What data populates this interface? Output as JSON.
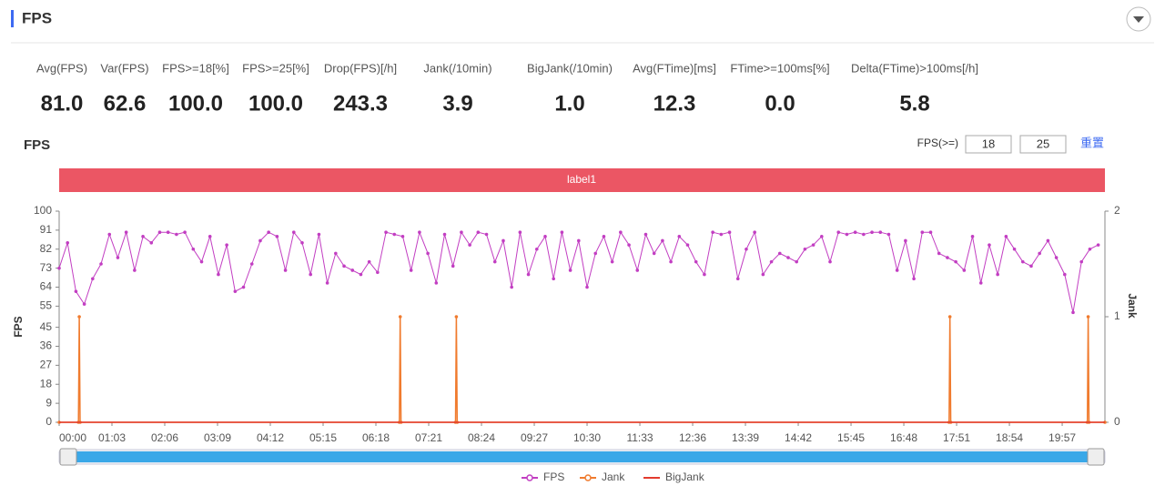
{
  "header": {
    "title": "FPS"
  },
  "stats": [
    {
      "label": "Avg(FPS)",
      "value": "81.0"
    },
    {
      "label": "Var(FPS)",
      "value": "62.6"
    },
    {
      "label": "FPS>=18[%]",
      "value": "100.0"
    },
    {
      "label": "FPS>=25[%]",
      "value": "100.0"
    },
    {
      "label": "Drop(FPS)[/h]",
      "value": "243.3"
    },
    {
      "label": "Jank(/10min)",
      "value": "3.9"
    },
    {
      "label": "BigJank(/10min)",
      "value": "1.0"
    },
    {
      "label": "Avg(FTime)[ms]",
      "value": "12.3"
    },
    {
      "label": "FTime>=100ms[%]",
      "value": "0.0"
    },
    {
      "label": "Delta(FTime)>100ms[/h]",
      "value": "5.8"
    }
  ],
  "controls": {
    "threshold_label": "FPS(>=)",
    "thresholds": [
      "18",
      "25"
    ],
    "reset": "重置"
  },
  "chart_data": {
    "type": "line",
    "title": "FPS",
    "band_label": "label1",
    "ylabel": "FPS",
    "y2label": "Jank",
    "xlim": [
      0,
      1248
    ],
    "xticks": [
      {
        "value": 0,
        "label": "00:00"
      },
      {
        "value": 63,
        "label": "01:03"
      },
      {
        "value": 126,
        "label": "02:06"
      },
      {
        "value": 189,
        "label": "03:09"
      },
      {
        "value": 252,
        "label": "04:12"
      },
      {
        "value": 315,
        "label": "05:15"
      },
      {
        "value": 378,
        "label": "06:18"
      },
      {
        "value": 441,
        "label": "07:21"
      },
      {
        "value": 504,
        "label": "08:24"
      },
      {
        "value": 567,
        "label": "09:27"
      },
      {
        "value": 630,
        "label": "10:30"
      },
      {
        "value": 693,
        "label": "11:33"
      },
      {
        "value": 756,
        "label": "12:36"
      },
      {
        "value": 819,
        "label": "13:39"
      },
      {
        "value": 882,
        "label": "14:42"
      },
      {
        "value": 945,
        "label": "15:45"
      },
      {
        "value": 1008,
        "label": "16:48"
      },
      {
        "value": 1071,
        "label": "17:51"
      },
      {
        "value": 1134,
        "label": "18:54"
      },
      {
        "value": 1197,
        "label": "19:57"
      }
    ],
    "ylim": [
      0,
      100
    ],
    "yticks": [
      0,
      9,
      18,
      27,
      36,
      45,
      55,
      64,
      73,
      82,
      91,
      100
    ],
    "y2lim": [
      0,
      2
    ],
    "y2ticks": [
      0,
      1,
      2
    ],
    "series": [
      {
        "name": "FPS",
        "color": "#c23ec2",
        "x": [
          0,
          10,
          20,
          30,
          40,
          50,
          60,
          70,
          80,
          90,
          100,
          110,
          120,
          130,
          140,
          150,
          160,
          170,
          180,
          190,
          200,
          210,
          220,
          230,
          240,
          250,
          260,
          270,
          280,
          290,
          300,
          310,
          320,
          330,
          340,
          350,
          360,
          370,
          380,
          390,
          400,
          410,
          420,
          430,
          440,
          450,
          460,
          470,
          480,
          490,
          500,
          510,
          520,
          530,
          540,
          550,
          560,
          570,
          580,
          590,
          600,
          610,
          620,
          630,
          640,
          650,
          660,
          670,
          680,
          690,
          700,
          710,
          720,
          730,
          740,
          750,
          760,
          770,
          780,
          790,
          800,
          810,
          820,
          830,
          840,
          850,
          860,
          870,
          880,
          890,
          900,
          910,
          920,
          930,
          940,
          950,
          960,
          970,
          980,
          990,
          1000,
          1010,
          1020,
          1030,
          1040,
          1050,
          1060,
          1070,
          1080,
          1090,
          1100,
          1110,
          1120,
          1130,
          1140,
          1150,
          1160,
          1170,
          1180,
          1190,
          1200,
          1210,
          1220,
          1230,
          1240
        ],
        "values": [
          73,
          85,
          62,
          56,
          68,
          75,
          89,
          78,
          90,
          72,
          88,
          85,
          90,
          90,
          89,
          90,
          82,
          76,
          88,
          70,
          84,
          62,
          64,
          75,
          86,
          90,
          88,
          72,
          90,
          85,
          70,
          89,
          66,
          80,
          74,
          72,
          70,
          76,
          71,
          90,
          89,
          88,
          72,
          90,
          80,
          66,
          89,
          74,
          90,
          84,
          90,
          89,
          76,
          86,
          64,
          90,
          70,
          82,
          88,
          68,
          90,
          72,
          86,
          64,
          80,
          88,
          76,
          90,
          84,
          72,
          89,
          80,
          86,
          76,
          88,
          84,
          76,
          70,
          90,
          89,
          90,
          68,
          82,
          90,
          70,
          76,
          80,
          78,
          76,
          82,
          84,
          88,
          76,
          90,
          89,
          90,
          89,
          90,
          90,
          89,
          72,
          86,
          68,
          90,
          90,
          80,
          78,
          76,
          72,
          88,
          66,
          84,
          70,
          88,
          82,
          76,
          74,
          80,
          86,
          78,
          70,
          52,
          76,
          82,
          84
        ]
      },
      {
        "name": "Jank",
        "color": "#f07b2e",
        "axis": "y2",
        "x": [
          0,
          23,
          24,
          25,
          406,
          407,
          408,
          473,
          474,
          475,
          1062,
          1063,
          1064,
          1227,
          1228,
          1229,
          1248
        ],
        "values": [
          0,
          0,
          1,
          0,
          0,
          1,
          0,
          0,
          1,
          0,
          0,
          1,
          0,
          0,
          1,
          0,
          0
        ]
      },
      {
        "name": "BigJank",
        "color": "#e33b2e",
        "axis": "y2",
        "x": [
          0,
          1248
        ],
        "values": [
          0,
          0
        ]
      }
    ]
  }
}
